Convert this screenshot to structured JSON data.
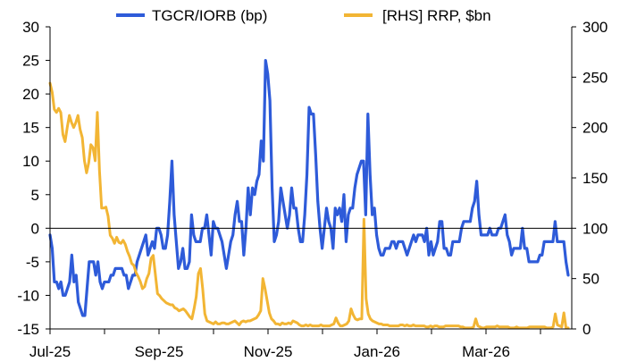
{
  "chart_data": {
    "type": "line",
    "title": "",
    "x_ticks": [
      "Jul-25",
      "Sep-25",
      "Nov-25",
      "Jan-26",
      "Mar-26"
    ],
    "x_range_months": [
      "Jul-25",
      "Apr-26"
    ],
    "left_axis": {
      "label": "",
      "min": -15,
      "max": 30,
      "ticks": [
        30,
        25,
        20,
        15,
        10,
        5,
        0,
        -5,
        -10,
        -15
      ]
    },
    "right_axis": {
      "label": "",
      "min": 0,
      "max": 300,
      "ticks": [
        300,
        250,
        200,
        150,
        100,
        50,
        0
      ]
    },
    "zero_line": true,
    "legend_position": "top",
    "series": [
      {
        "name": "TGCR/IORB (bp)",
        "axis": "left",
        "color": "#2E5BD9",
        "values": [
          -1,
          -3,
          -8,
          -8,
          -9,
          -8,
          -10,
          -10,
          -9,
          -8,
          -4,
          -8,
          -7,
          -11,
          -12,
          -13,
          -13,
          -9,
          -5,
          -5,
          -5,
          -7,
          -5,
          -8,
          -9,
          -8,
          -8,
          -8,
          -7,
          -7,
          -6,
          -6,
          -6,
          -6,
          -7,
          -7,
          -9,
          -8,
          -7,
          -7,
          -5,
          -4,
          -3,
          -2,
          -1,
          -4,
          -3,
          -2,
          -3,
          0,
          0,
          -1,
          -3,
          -3,
          -1,
          4,
          10,
          2,
          -2,
          -6,
          -5,
          -3,
          -6,
          -6,
          -5,
          2,
          -1,
          -2,
          -2,
          -2,
          0,
          0,
          2,
          -1,
          -4,
          1,
          0,
          0,
          -1,
          -2,
          -4,
          -6,
          -4,
          -2,
          -1,
          2,
          4,
          1,
          1,
          -4,
          0,
          6,
          2,
          6,
          5,
          7,
          8,
          13,
          10,
          25,
          23,
          19,
          6,
          -2,
          -1,
          1,
          6,
          4,
          2,
          0,
          2,
          6,
          3,
          3,
          0,
          -2,
          -2,
          2,
          8,
          18,
          17,
          17,
          11,
          4,
          0,
          -3,
          0,
          3,
          1,
          0,
          -3,
          3,
          2,
          3,
          1,
          5,
          -2,
          2,
          3,
          3,
          6,
          8,
          9,
          10,
          10,
          2,
          17,
          8,
          2,
          3,
          -1,
          -3,
          -4,
          -4,
          -3,
          -3,
          -3,
          -2,
          -2,
          -3,
          -2,
          -2,
          -2,
          -3,
          -4,
          -3,
          -2,
          -1,
          -2,
          -1,
          -1,
          -1,
          -2,
          0,
          -4,
          -2,
          -4,
          -3,
          -2,
          1,
          1,
          -3,
          -3,
          -4,
          -4,
          -2,
          -2,
          -2,
          -2,
          0,
          1,
          1,
          1,
          1,
          3,
          4,
          7,
          2,
          -1,
          -1,
          -1,
          -1,
          0,
          -1,
          -1,
          -1,
          0,
          0,
          1,
          2,
          -1,
          -2,
          -4,
          -3,
          -3,
          -3,
          -3,
          0,
          -3,
          -3,
          -5,
          -5,
          -5,
          -5,
          -5,
          -4,
          -4,
          -2,
          -2,
          -2,
          -2,
          -2,
          1,
          -2,
          -2,
          -2,
          -2,
          -5,
          -7
        ]
      },
      {
        "name": "[RHS] RRP, $bn",
        "axis": "right",
        "color": "#F2B534",
        "values": [
          244,
          235,
          218,
          215,
          219,
          215,
          193,
          186,
          200,
          212,
          205,
          200,
          205,
          212,
          198,
          190,
          167,
          155,
          165,
          183,
          180,
          167,
          215,
          157,
          120,
          120,
          121,
          112,
          93,
          90,
          85,
          91,
          86,
          85,
          88,
          84,
          77,
          72,
          65,
          63,
          56,
          52,
          47,
          40,
          42,
          50,
          55,
          70,
          73,
          54,
          35,
          33,
          30,
          28,
          26,
          25,
          24,
          24,
          21,
          20,
          18,
          19,
          20,
          18,
          15,
          12,
          10,
          20,
          32,
          55,
          60,
          40,
          15,
          8,
          7,
          6,
          5,
          7,
          5,
          5,
          6,
          6,
          5,
          5,
          6,
          7,
          8,
          6,
          4,
          7,
          8,
          7,
          8,
          8,
          9,
          10,
          11,
          14,
          18,
          50,
          40,
          28,
          16,
          10,
          8,
          5,
          5,
          4,
          6,
          5,
          5,
          6,
          5,
          8,
          7,
          6,
          4,
          3,
          3,
          4,
          3,
          4,
          3,
          3,
          3,
          3,
          4,
          3,
          3,
          3,
          3,
          4,
          5,
          11,
          6,
          3,
          3,
          4,
          5,
          8,
          20,
          14,
          10,
          9,
          10,
          10,
          109,
          30,
          15,
          10,
          8,
          7,
          6,
          5,
          5,
          4,
          4,
          4,
          3,
          3,
          3,
          3,
          3,
          4,
          4,
          3,
          4,
          3,
          3,
          4,
          3,
          3,
          3,
          3,
          3,
          2,
          2,
          3,
          2,
          3,
          3,
          2,
          2,
          2,
          3,
          3,
          3,
          3,
          3,
          3,
          3,
          2,
          2,
          1,
          1,
          1,
          1,
          2,
          10,
          3,
          2,
          1,
          1,
          2,
          2,
          2,
          2,
          2,
          3,
          2,
          2,
          2,
          2,
          2,
          1,
          1,
          1,
          2,
          1,
          1,
          1,
          1,
          1,
          2,
          2,
          2,
          2,
          2,
          2,
          2,
          2,
          1,
          1,
          1,
          2,
          15,
          4,
          3,
          2,
          16,
          1,
          1
        ]
      }
    ]
  }
}
